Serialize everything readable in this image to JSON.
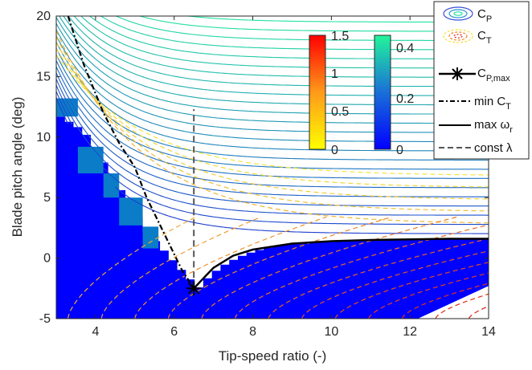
{
  "chart_data": {
    "type": "line",
    "title": "",
    "xlabel": "Tip-speed ratio (-)",
    "ylabel": "Blade pitch angle (deg)",
    "xlim": [
      3,
      14
    ],
    "ylim": [
      -5,
      20
    ],
    "x_ticks": [
      "4",
      "6",
      "8",
      "10",
      "12",
      "14"
    ],
    "y_ticks": [
      "-5",
      "0",
      "5",
      "10",
      "15",
      "20"
    ],
    "grid": false,
    "legend_position": "top-right",
    "colors": {
      "cp_region_fill": "#0000ff",
      "cp_contour_low": "#1d3fd0",
      "cp_contour_high": "#22e3a0",
      "ct_contour_low": "#f5e33a",
      "ct_contour_high": "#e01e14",
      "cp_max_marker": "#000000"
    },
    "colorbars": [
      {
        "name": "C_T",
        "scale": "yellow-to-red",
        "min": 0,
        "max": 1.5,
        "ticks": [
          "1.5",
          "1",
          "0.5",
          "0"
        ]
      },
      {
        "name": "C_P",
        "scale": "blue-to-green",
        "min": 0,
        "max": 0.45,
        "ticks": [
          "0.4",
          "0.2",
          "0"
        ]
      }
    ],
    "legend": {
      "cp": "C",
      "cp_sub": "P",
      "ct": "C",
      "ct_sub": "T",
      "cpmax": "C",
      "cpmax_sub": "P,max",
      "min_ct": "min C",
      "min_ct_sub": "T",
      "max_omega": "max ω",
      "max_omega_sub": "r",
      "const_lambda": "const λ"
    },
    "series": [
      {
        "style": "dash-dot",
        "x": [
          3.3,
          3.7,
          4.2,
          4.6,
          5.0,
          5.3,
          5.6,
          5.9,
          6.2,
          6.5
        ],
        "y": [
          20,
          16,
          12,
          9.5,
          7.5,
          5.0,
          3.0,
          1.0,
          -1.0,
          -2.5
        ]
      },
      {
        "style": "solid",
        "x": [
          6.5,
          7.0,
          7.5,
          8.0,
          9.0,
          10.0,
          11.0,
          12.0,
          13.0,
          14.0
        ],
        "y": [
          -2.5,
          -0.8,
          0.2,
          0.7,
          1.2,
          1.4,
          1.5,
          1.55,
          1.6,
          1.6
        ]
      },
      {
        "style": "dashed",
        "x": [
          6.5,
          6.5
        ],
        "y": [
          -2.5,
          12.3
        ]
      },
      {
        "style": "marker",
        "x": [
          6.5
        ],
        "y": [
          -2.5
        ]
      }
    ]
  }
}
